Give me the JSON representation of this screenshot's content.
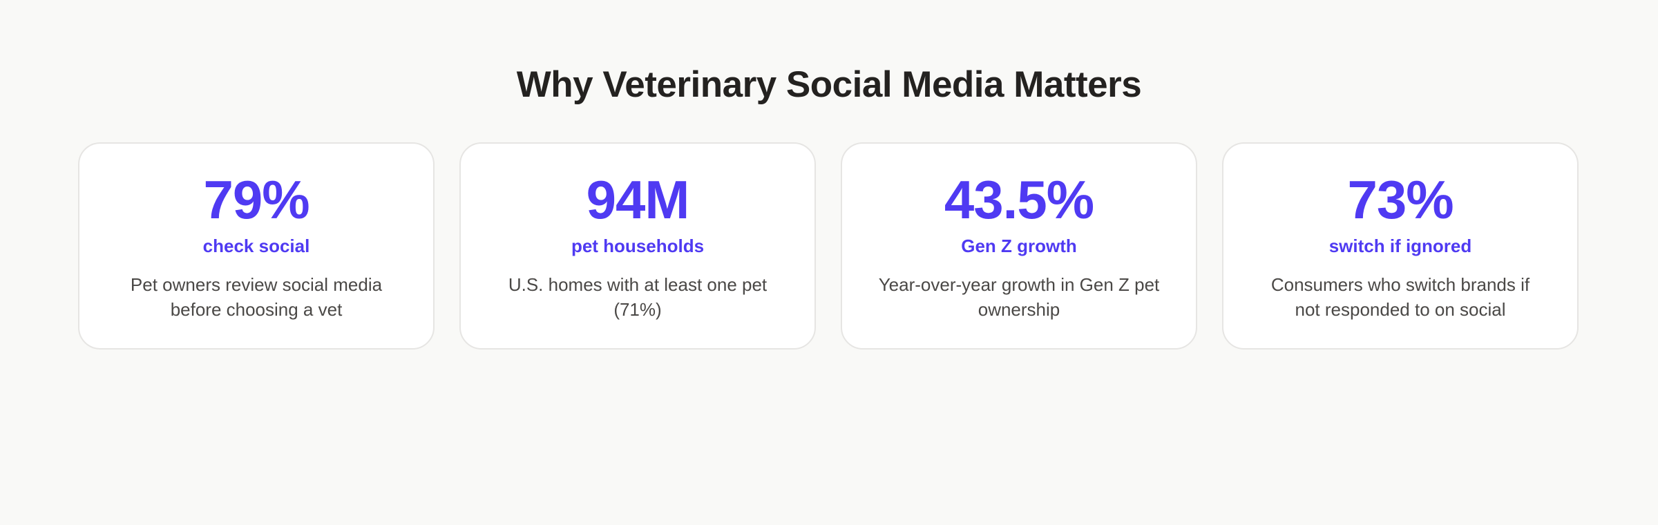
{
  "title": "Why Veterinary Social Media Matters",
  "accent_color": "#4f3af2",
  "stats": [
    {
      "value": "79%",
      "label": "check social",
      "description": "Pet owners review social media before choosing a vet"
    },
    {
      "value": "94M",
      "label": "pet households",
      "description": "U.S. homes with at least one pet (71%)"
    },
    {
      "value": "43.5%",
      "label": "Gen Z growth",
      "description": "Year-over-year growth in Gen Z pet ownership"
    },
    {
      "value": "73%",
      "label": "switch if ignored",
      "description": "Consumers who switch brands if not responded to on social"
    }
  ]
}
